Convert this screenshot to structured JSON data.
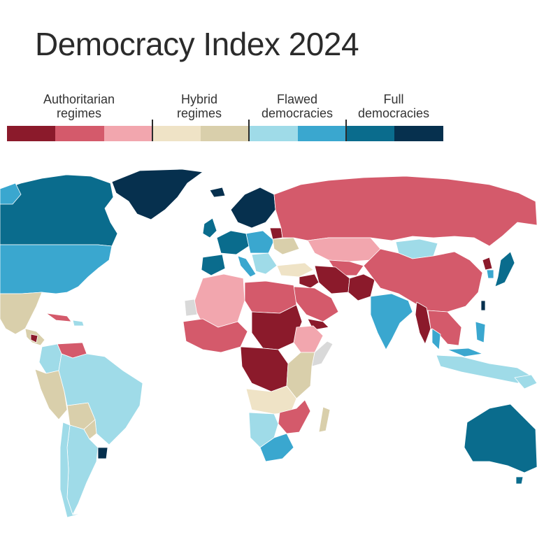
{
  "title": "Democracy Index 2024",
  "legend": {
    "categories": [
      {
        "label": "Authoritarian\nregimes",
        "colors": [
          "#8b1a2b",
          "#d45a6b",
          "#f2a6ae"
        ]
      },
      {
        "label": "Hybrid\nregimes",
        "colors": [
          "#efe3c6",
          "#d9cfab"
        ]
      },
      {
        "label": "Flawed\ndemocracies",
        "colors": [
          "#9fdbe8",
          "#3aa7cf"
        ]
      },
      {
        "label": "Full\ndemocracies",
        "colors": [
          "#0a6c8d",
          "#06304e"
        ]
      }
    ]
  },
  "colors": {
    "authoritarian_dark": "#8b1a2b",
    "authoritarian_mid": "#d45a6b",
    "authoritarian_light": "#f2a6ae",
    "hybrid_light": "#efe3c6",
    "hybrid_dark": "#d9cfab",
    "flawed_light": "#9fdbe8",
    "flawed_dark": "#3aa7cf",
    "full_light": "#0a6c8d",
    "full_dark": "#06304e",
    "no_data": "#d9d9d9"
  }
}
